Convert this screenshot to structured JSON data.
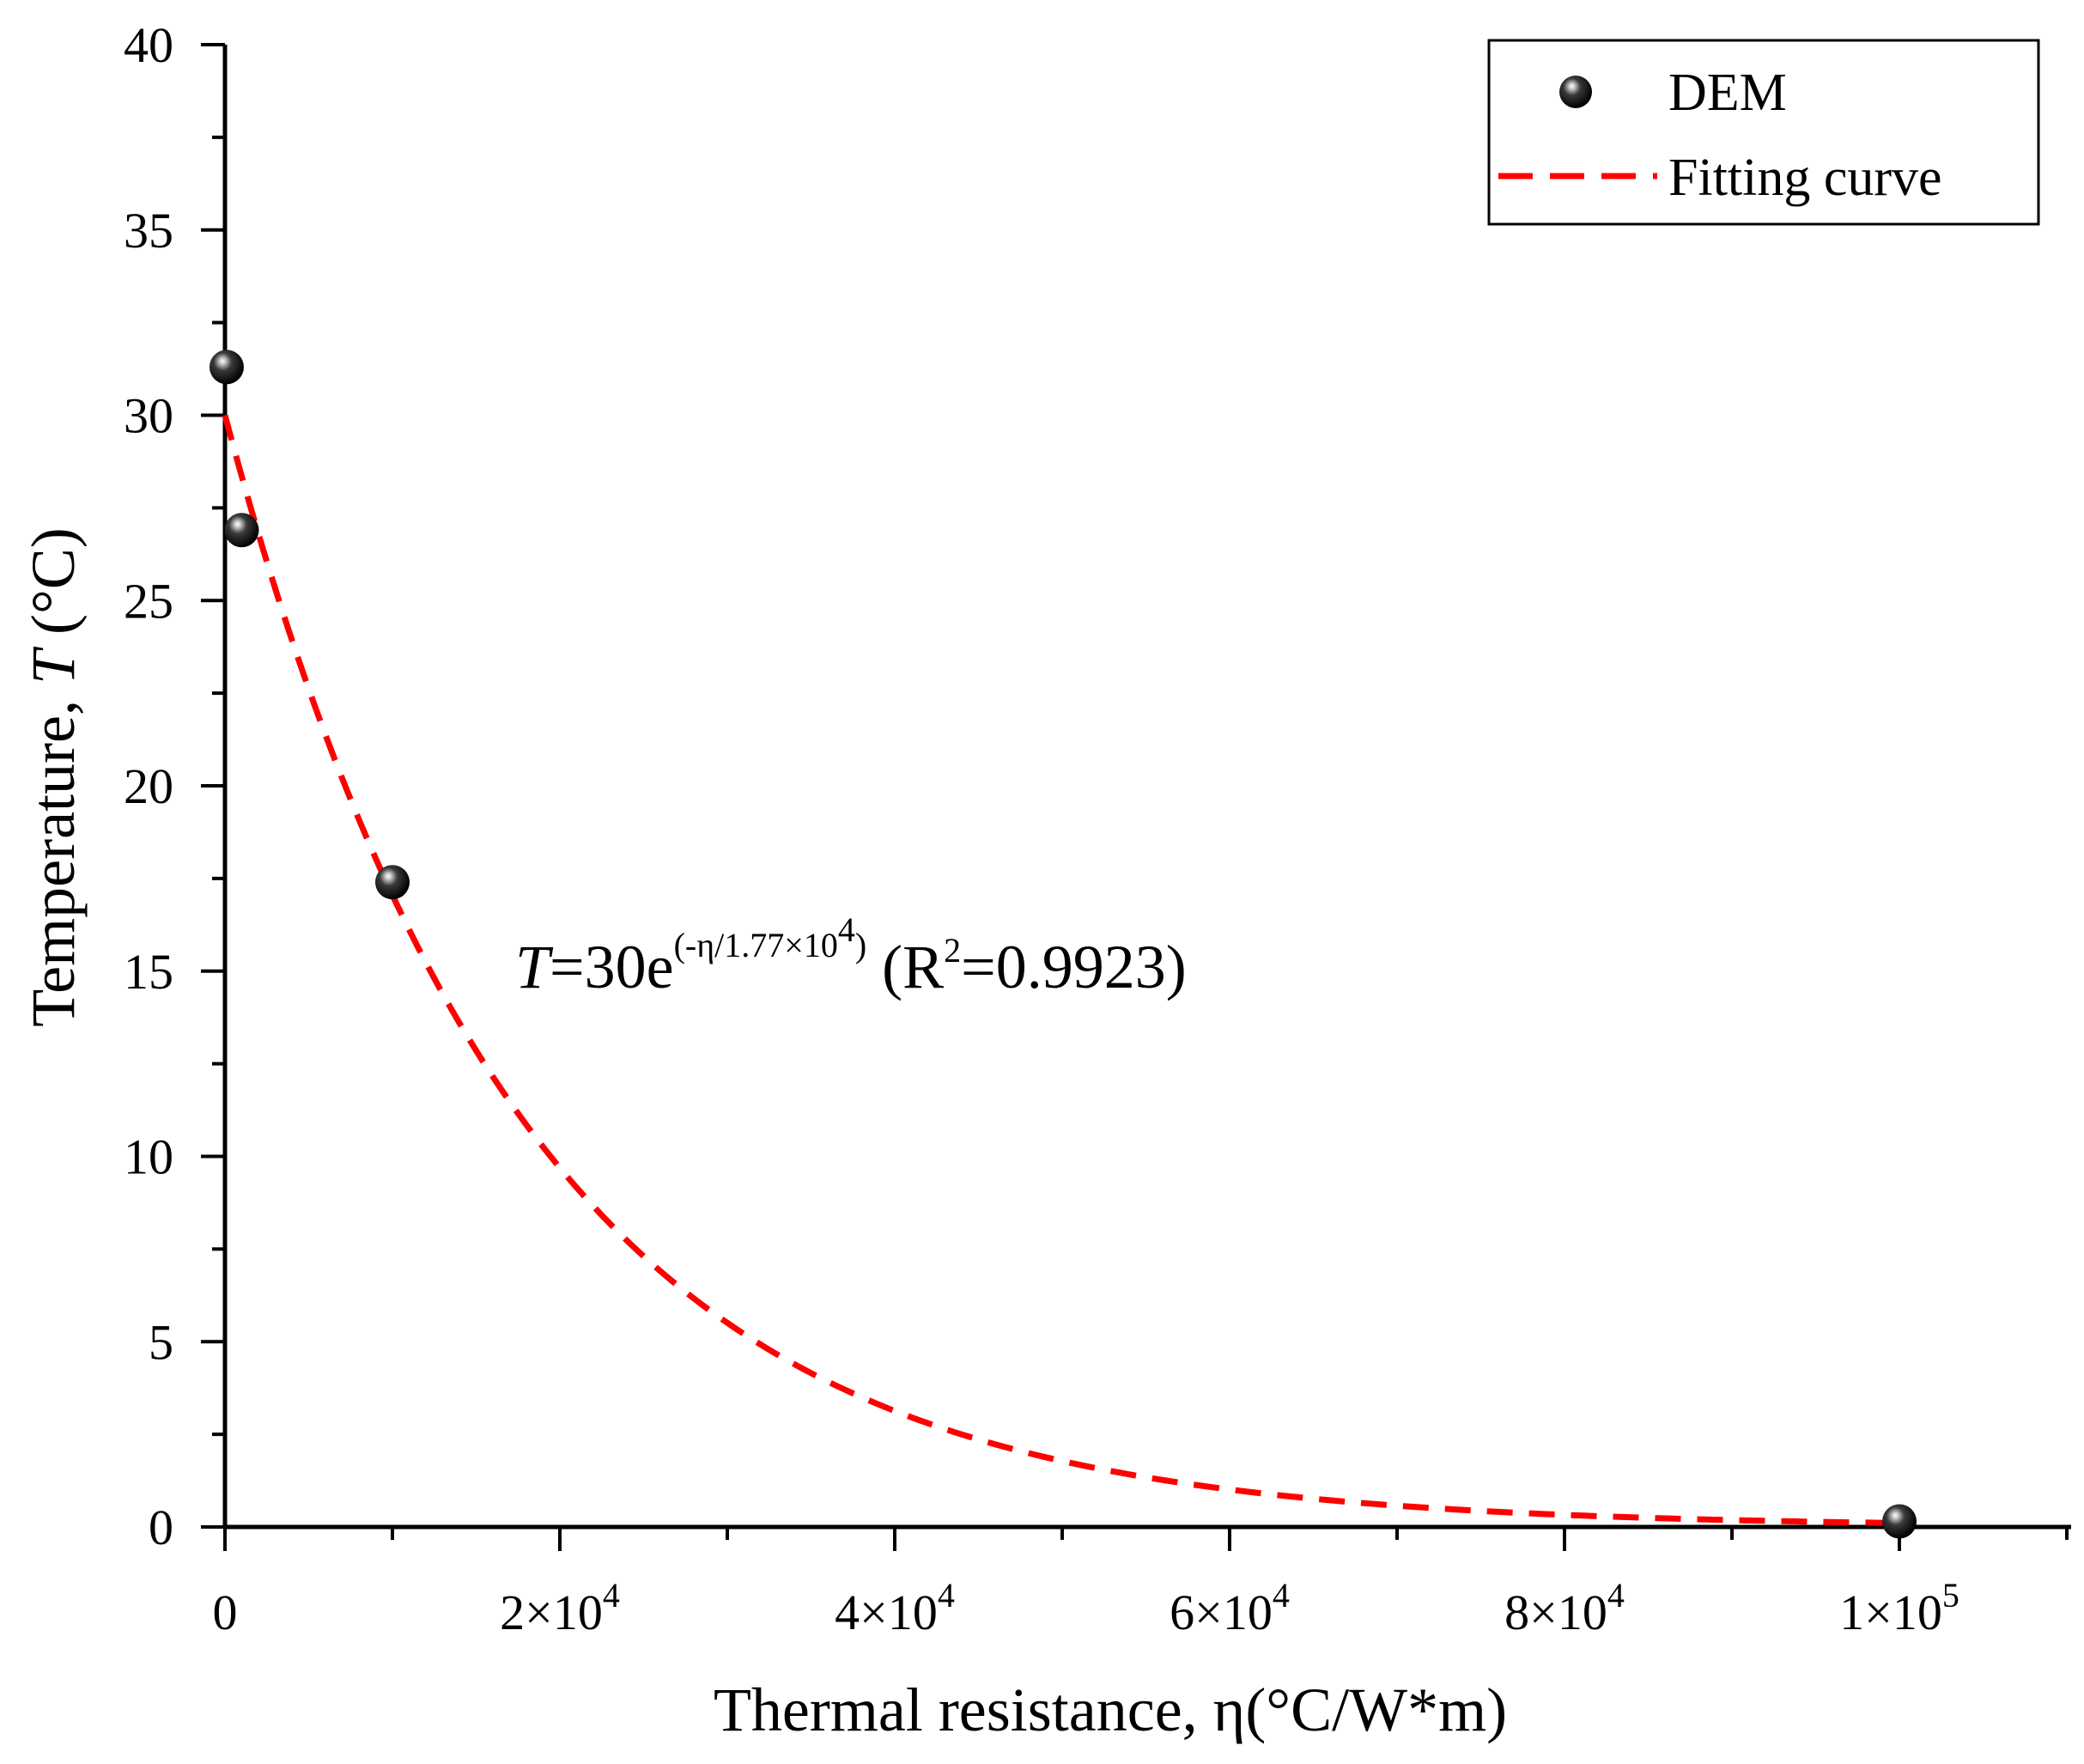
{
  "chart_data": {
    "type": "scatter",
    "title": "",
    "xlabel": "Thermal resistance, η(°C/W*m)",
    "ylabel": {
      "prefix": "Temperature, ",
      "var": "T",
      "unit": " (°C)"
    },
    "xlim": [
      0,
      110000
    ],
    "ylim": [
      0,
      40
    ],
    "x_ticks": [
      {
        "value": 0,
        "mant": "0",
        "exp": ""
      },
      {
        "value": 20000,
        "mant": "2×10",
        "exp": "4"
      },
      {
        "value": 40000,
        "mant": "4×10",
        "exp": "4"
      },
      {
        "value": 60000,
        "mant": "6×10",
        "exp": "4"
      },
      {
        "value": 80000,
        "mant": "8×10",
        "exp": "4"
      },
      {
        "value": 100000,
        "mant": "1×10",
        "exp": "5"
      }
    ],
    "x_minor_step": 10000,
    "y_ticks": [
      0,
      5,
      10,
      15,
      20,
      25,
      30,
      35,
      40
    ],
    "y_minor_step": 2.5,
    "grid": false,
    "legend_position": "top-right",
    "series": [
      {
        "name": "DEM",
        "kind": "scatter",
        "color": "#111111",
        "points": [
          {
            "x": 100,
            "y": 31.3
          },
          {
            "x": 1000,
            "y": 26.9
          },
          {
            "x": 10000,
            "y": 17.4
          },
          {
            "x": 100000,
            "y": 0.15
          }
        ]
      },
      {
        "name": "Fitting curve",
        "kind": "line",
        "style": "dashed",
        "color": "#ff0000",
        "function": {
          "a": 30,
          "b": 17700,
          "x_from": 0,
          "x_to": 100000
        }
      }
    ],
    "annotation": {
      "var": "T",
      "main": "=30e",
      "sup_a": "(-η/1.77×10",
      "sup_exp": "4",
      "sup_b": ")",
      "tail_a": " (R",
      "tail_exp": "2",
      "tail_b": "=0.9923)"
    }
  }
}
